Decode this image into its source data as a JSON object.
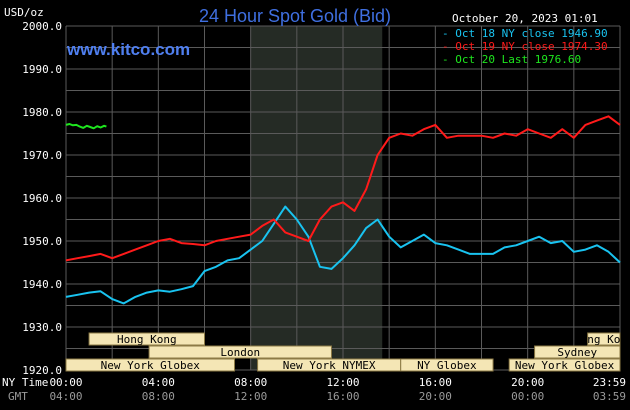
{
  "title": "24 Hour Spot Gold (Bid)",
  "site": "www.kitco.com",
  "unit_label": "USD/oz",
  "timestamp": "October 20, 2023 01:01",
  "legend": [
    {
      "text": "- Oct 18 NY close 1946.90",
      "color": "#19c3f0"
    },
    {
      "text": "- Oct 19 NY close 1974.30",
      "color": "#ff1a1a"
    },
    {
      "text": "- Oct 20 Last 1976.60",
      "color": "#1ee61e"
    }
  ],
  "x_row_label_ny": "NY Time",
  "x_row_label_gmt": "GMT",
  "ny_ticks": [
    "00:00",
    "04:00",
    "08:00",
    "12:00",
    "16:00",
    "20:00",
    "23:59"
  ],
  "gmt_ticks": [
    "04:00",
    "08:00",
    "12:00",
    "16:00",
    "20:00",
    "00:00",
    "03:59"
  ],
  "y_ticks": [
    "2000.0",
    "1990.0",
    "1980.0",
    "1970.0",
    "1960.0",
    "1950.0",
    "1940.0",
    "1930.0",
    "1920.0"
  ],
  "sessions": [
    {
      "label": "Hong Kong",
      "start": 1.0,
      "end": 6.0,
      "row": 1
    },
    {
      "label": "Hong Kong",
      "start": 22.6,
      "end": 24.0,
      "row": 1
    },
    {
      "label": "London",
      "start": 3.6,
      "end": 11.5,
      "row": 2
    },
    {
      "label": "Sydney",
      "start": 20.3,
      "end": 24.0,
      "row": 2
    },
    {
      "label": "New York Globex",
      "start": 0.0,
      "end": 7.3,
      "row": 3
    },
    {
      "label": "New York NYMEX",
      "start": 8.3,
      "end": 14.5,
      "row": 3
    },
    {
      "label": "NY Globex",
      "start": 14.5,
      "end": 18.5,
      "row": 3
    },
    {
      "label": "New York Globex",
      "start": 19.2,
      "end": 24.0,
      "row": 3
    }
  ],
  "colors": {
    "grid": "#5a5a5a",
    "nymex_shade": "#252b25",
    "session_box": "#f4e6b5",
    "session_box_border": "#8c7a45",
    "prior": "#19c3f0",
    "yesterday": "#ff1a1a",
    "today": "#1ee61e"
  },
  "chart_data": {
    "type": "line",
    "title": "24 Hour Spot Gold (Bid)",
    "ylabel": "USD/oz",
    "xlabel": "NY Time",
    "ylim": [
      1920,
      2000
    ],
    "xlim": [
      0,
      24
    ],
    "nymex_shade": [
      8.0,
      13.7
    ],
    "series": [
      {
        "name": "Oct 18 NY close 1946.90",
        "color": "#19c3f0",
        "x": [
          0,
          0.5,
          1,
          1.5,
          2,
          2.5,
          3,
          3.5,
          4,
          4.5,
          5,
          5.5,
          6,
          6.5,
          7,
          7.5,
          8,
          8.5,
          9,
          9.5,
          10,
          10.5,
          11,
          11.5,
          12,
          12.5,
          13,
          13.5,
          14,
          14.5,
          15,
          15.5,
          16,
          16.5,
          17,
          17.5,
          18,
          18.5,
          19,
          19.5,
          20,
          20.5,
          21,
          21.5,
          22,
          22.5,
          23,
          23.5,
          24
        ],
        "y": [
          1937,
          1937.5,
          1938,
          1938.3,
          1936.5,
          1935.5,
          1937,
          1938,
          1938.5,
          1938.2,
          1938.8,
          1939.5,
          1943,
          1944,
          1945.5,
          1946,
          1948,
          1950,
          1954,
          1958,
          1955,
          1951,
          1944,
          1943.5,
          1946,
          1949,
          1953,
          1955,
          1951,
          1948.5,
          1950,
          1951.5,
          1949.5,
          1949,
          1948,
          1947,
          1947,
          1947,
          1948.5,
          1949,
          1950,
          1951,
          1949.5,
          1950,
          1947.5,
          1948,
          1949,
          1947.5,
          1945
        ]
      },
      {
        "name": "Oct 19 NY close 1974.30",
        "color": "#ff1a1a",
        "x": [
          0,
          0.5,
          1,
          1.5,
          2,
          2.5,
          3,
          3.5,
          4,
          4.5,
          5,
          5.5,
          6,
          6.5,
          7,
          7.5,
          8,
          8.5,
          9,
          9.5,
          10,
          10.5,
          11,
          11.5,
          12,
          12.5,
          13,
          13.5,
          14,
          14.5,
          15,
          15.5,
          16,
          16.5,
          17,
          17.5,
          18,
          18.5,
          19,
          19.5,
          20,
          20.5,
          21,
          21.5,
          22,
          22.5,
          23,
          23.5,
          24
        ],
        "y": [
          1945.5,
          1946,
          1946.5,
          1947,
          1946,
          1947,
          1948,
          1949,
          1950,
          1950.5,
          1949.5,
          1949.3,
          1949,
          1950,
          1950.5,
          1951,
          1951.5,
          1953.5,
          1955,
          1952,
          1951,
          1950,
          1955,
          1958,
          1959,
          1957,
          1962,
          1970,
          1974,
          1975,
          1974.5,
          1976,
          1977,
          1974,
          1974.5,
          1974.5,
          1974.5,
          1974,
          1975,
          1974.5,
          1976,
          1975,
          1974,
          1976,
          1974,
          1977,
          1978,
          1979,
          1977
        ]
      },
      {
        "name": "Oct 20 Last 1976.60",
        "color": "#1ee61e",
        "x": [
          0,
          0.15,
          0.3,
          0.45,
          0.6,
          0.75,
          0.9,
          1.05,
          1.2,
          1.35,
          1.5,
          1.65,
          1.75
        ],
        "y": [
          1977,
          1977.2,
          1976.9,
          1977,
          1976.6,
          1976.3,
          1976.8,
          1976.5,
          1976.2,
          1976.7,
          1976.4,
          1976.8,
          1976.6
        ]
      }
    ]
  }
}
